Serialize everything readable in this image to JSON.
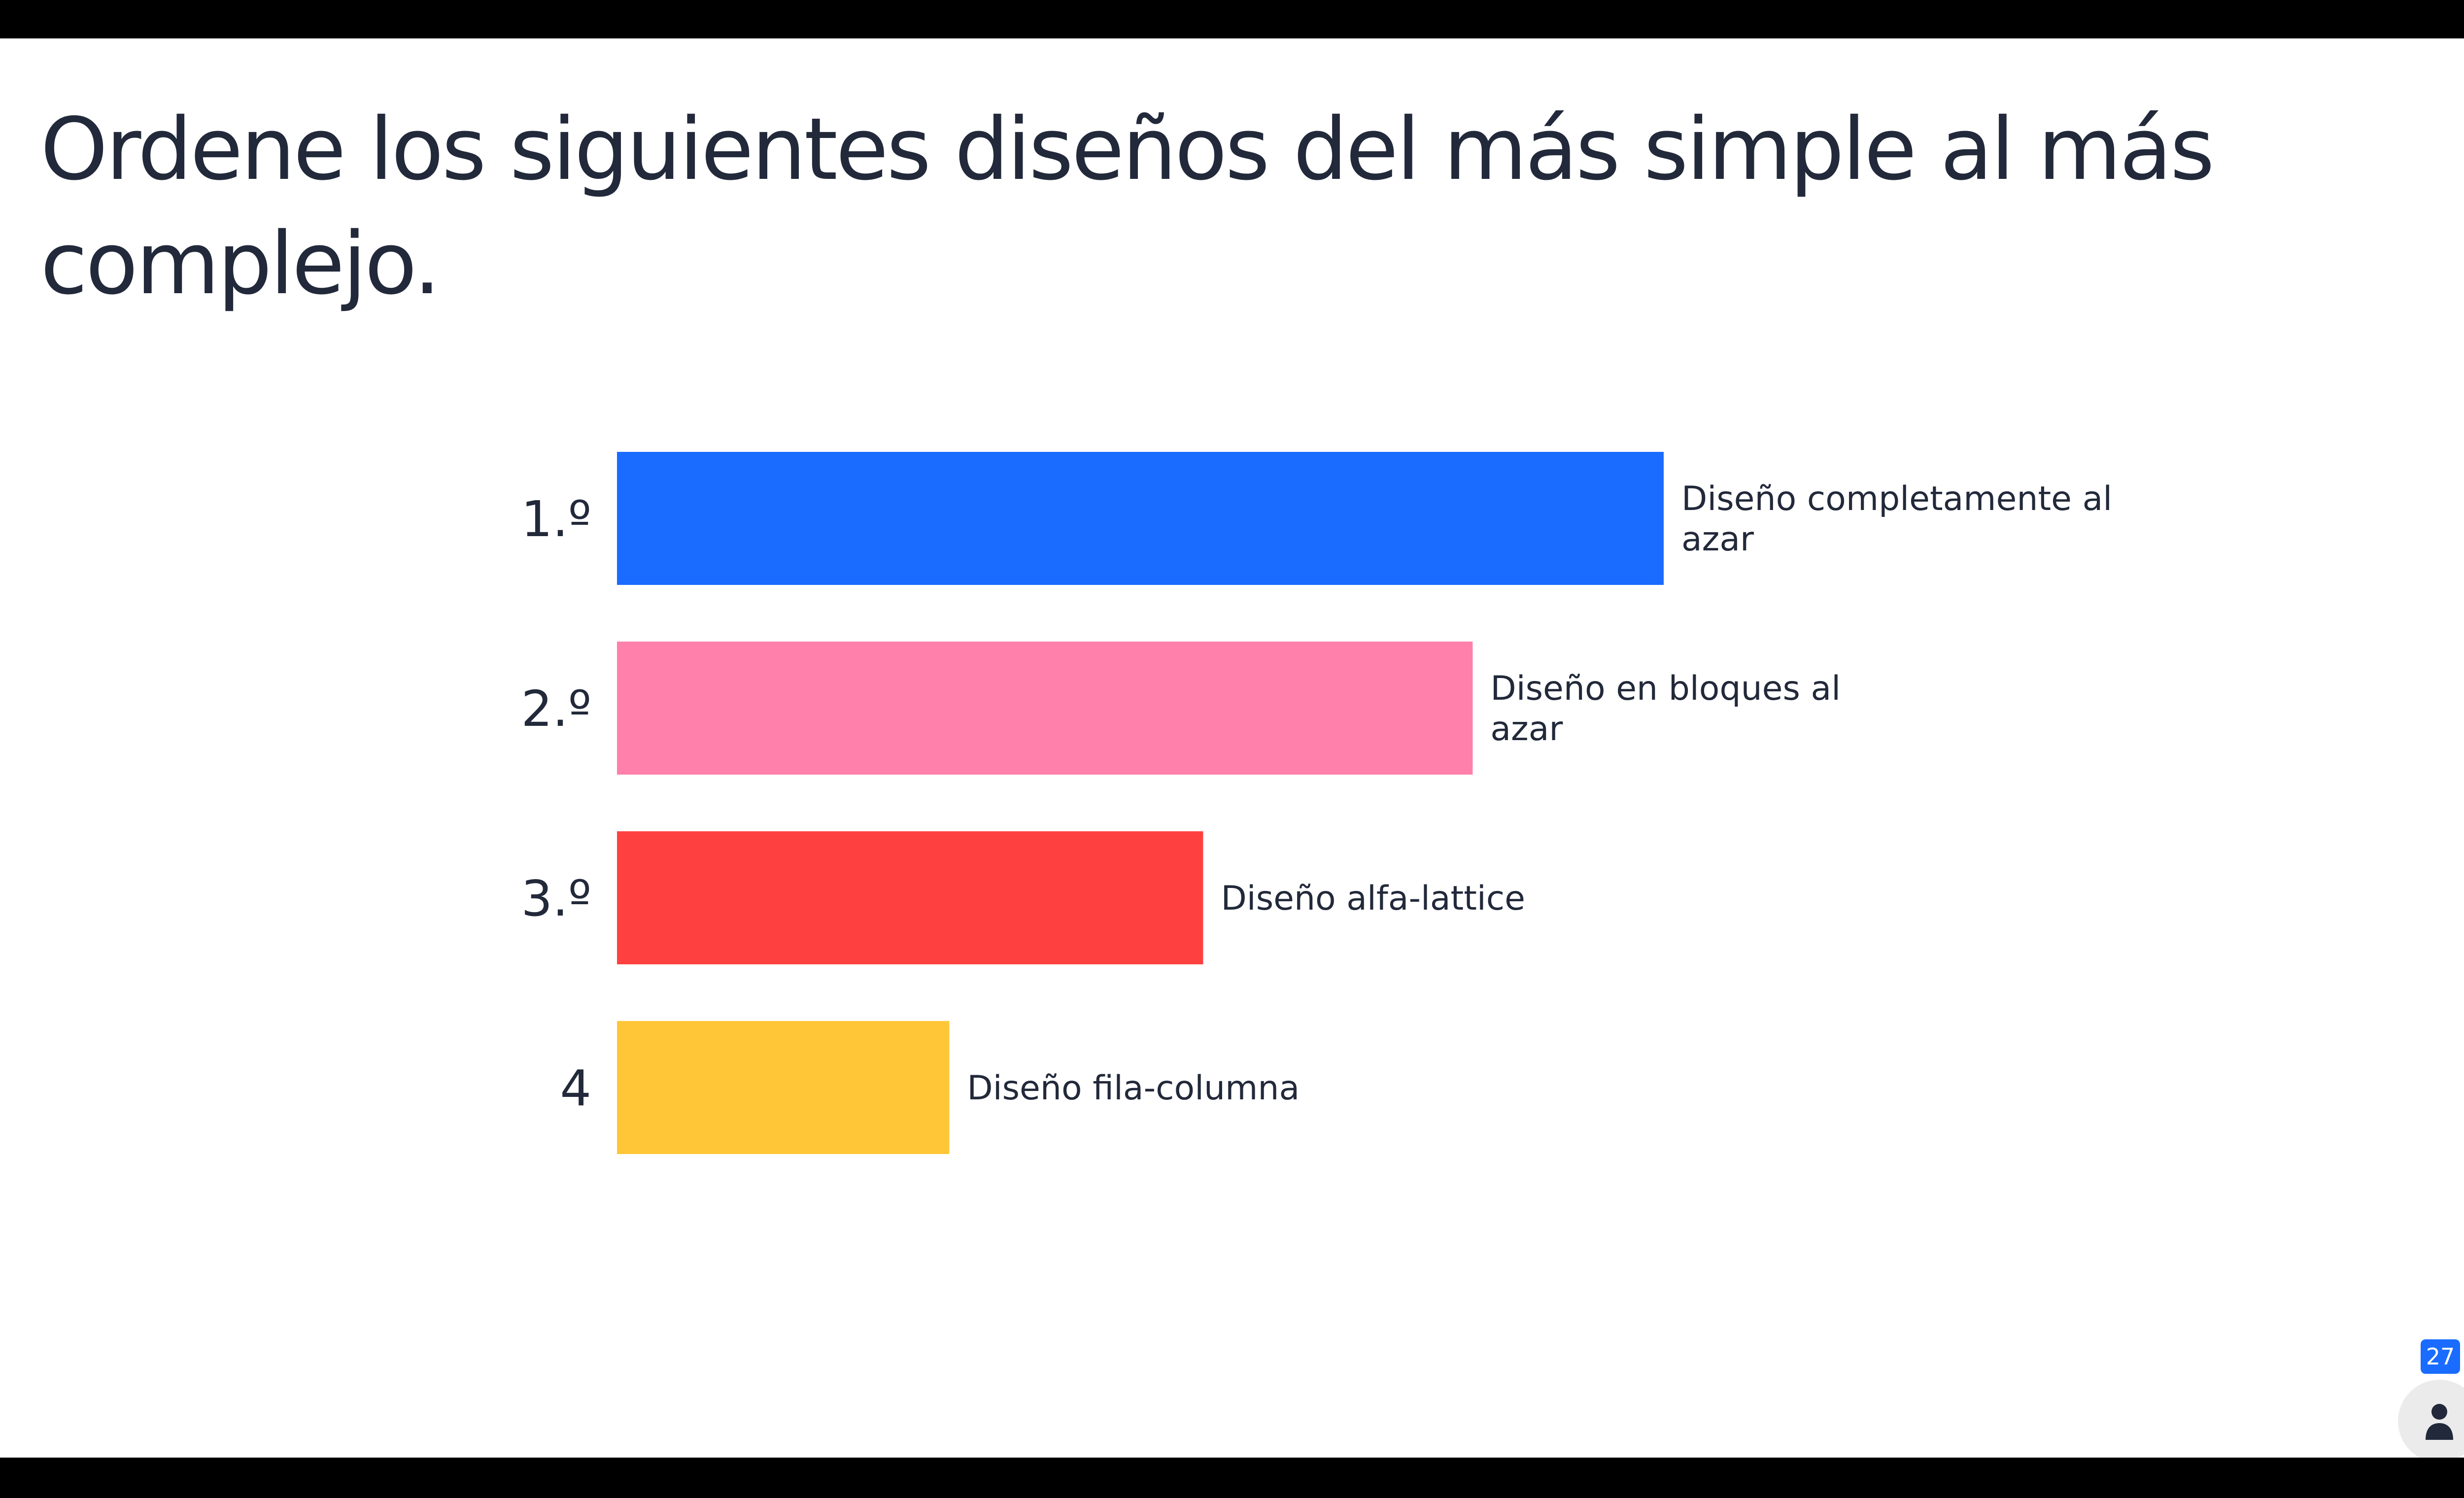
{
  "slide": {
    "title": "Ordene los siguientes diseños del más simple al más complejo."
  },
  "participants": {
    "count": "27",
    "icon": "person-icon"
  },
  "chart_data": {
    "type": "bar",
    "orientation": "horizontal",
    "categories": [
      "1.º",
      "2.º",
      "3.º",
      "4"
    ],
    "bar_labels": [
      "Diseño completamente al azar",
      "Diseño en bloques al azar",
      "Diseño alfa-lattice",
      "Diseño fila-columna"
    ],
    "values": [
      4,
      3.27,
      2.24,
      1.27
    ],
    "xlim": [
      0,
      4
    ],
    "colors": [
      "#196cff",
      "#ff80aa",
      "#ff4040",
      "#ffc637"
    ],
    "grid": false,
    "legend": "none"
  }
}
